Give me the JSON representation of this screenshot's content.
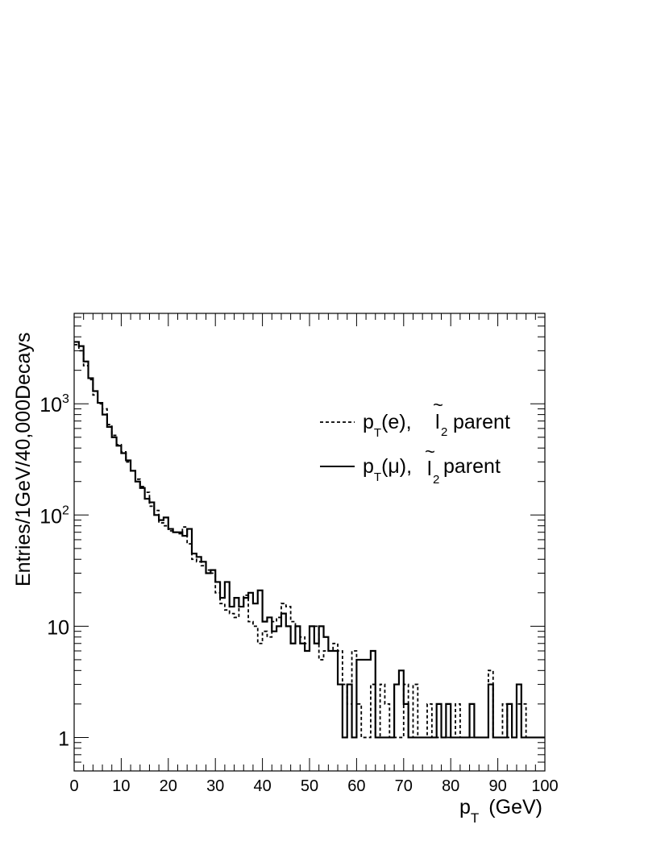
{
  "chart_data": {
    "type": "line",
    "step": true,
    "ylog": true,
    "xlim": [
      0,
      100
    ],
    "ylim": [
      0.5,
      6500
    ],
    "xlabel_main": "p",
    "xlabel_sub": "T",
    "xlabel_unit": "(GeV)",
    "ylabel": "Entries/1GeV/40,000Decays",
    "x_ticks": [
      "0",
      "10",
      "20",
      "30",
      "40",
      "50",
      "60",
      "70",
      "80",
      "90",
      "100"
    ],
    "y_ticks": [
      {
        "value": 1,
        "label": "1"
      },
      {
        "value": 10,
        "label": "10"
      },
      {
        "value": 100,
        "label": "10",
        "exp": "2"
      },
      {
        "value": 1000,
        "label": "10",
        "exp": "3"
      }
    ],
    "legend_placement": "right",
    "series": [
      {
        "style": "dashed",
        "legend": {
          "main": "p",
          "sub": "T",
          "arg": "(e),",
          "slepton": "l",
          "tilde": "~",
          "idx": "2",
          "rest": "parent"
        },
        "values": [
          3400,
          3000,
          2200,
          1650,
          1200,
          1000,
          900,
          650,
          520,
          430,
          370,
          300,
          250,
          210,
          180,
          160,
          120,
          110,
          85,
          80,
          72,
          70,
          68,
          78,
          55,
          40,
          38,
          35,
          32,
          30,
          20,
          16,
          14,
          13,
          12,
          15,
          19,
          11,
          10,
          7,
          9,
          8,
          11,
          12,
          16,
          15,
          11,
          10,
          8,
          7,
          10,
          10,
          5,
          6,
          6,
          7,
          6,
          3,
          2,
          6,
          2,
          1,
          1,
          3,
          1,
          3,
          2,
          1,
          1,
          1,
          3,
          1,
          3,
          1,
          1,
          2,
          1,
          1,
          1,
          1,
          1,
          2,
          1,
          1,
          1,
          1,
          1,
          1,
          4,
          1,
          1,
          2,
          1,
          1,
          2,
          2,
          1,
          1,
          1,
          1
        ]
      },
      {
        "style": "solid",
        "legend": {
          "main": "p",
          "sub": "T",
          "arg": "(μ),",
          "slepton": "l",
          "tilde": "~",
          "idx": "2",
          "rest": "parent"
        },
        "values": [
          3600,
          3300,
          2400,
          1700,
          1300,
          1020,
          800,
          620,
          500,
          420,
          360,
          310,
          250,
          200,
          175,
          140,
          130,
          100,
          90,
          95,
          75,
          70,
          70,
          65,
          75,
          45,
          42,
          38,
          30,
          32,
          25,
          18,
          25,
          15,
          18,
          15,
          18,
          20,
          16,
          21,
          11,
          12,
          9,
          10,
          13,
          10,
          7,
          10,
          7,
          6,
          10,
          7,
          10,
          8,
          6,
          6,
          3,
          1,
          3,
          1,
          5,
          5,
          5,
          6,
          1,
          1,
          1,
          1,
          3,
          4,
          2,
          1,
          1,
          1,
          1,
          1,
          1,
          2,
          1,
          2,
          1,
          1,
          1,
          1,
          2,
          1,
          1,
          1,
          3,
          1,
          1,
          1,
          2,
          1,
          3,
          1,
          1,
          1,
          1,
          1
        ]
      }
    ]
  }
}
